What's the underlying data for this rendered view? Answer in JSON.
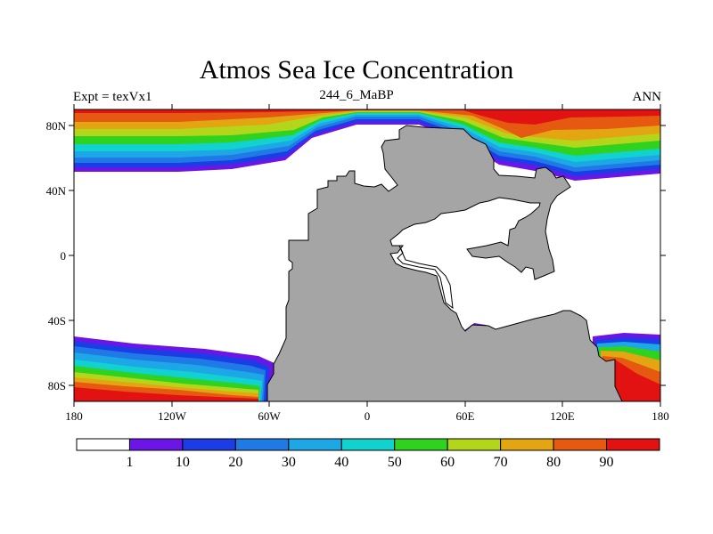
{
  "title": "Atmos Sea Ice Concentration",
  "subtitle_left": "Expt = texVx1",
  "subtitle_center": "244_6_MaBP",
  "subtitle_right": "ANN",
  "x_ticks": [
    "180",
    "120W",
    "60W",
    "0",
    "60E",
    "120E",
    "180"
  ],
  "y_ticks": [
    "80N",
    "40N",
    "0",
    "40S",
    "80S"
  ],
  "colorbar": {
    "labels": [
      "1",
      "10",
      "20",
      "30",
      "40",
      "50",
      "60",
      "70",
      "80",
      "90"
    ],
    "colors": [
      "#ffffff",
      "#6b16e6",
      "#1c3ce6",
      "#1f7ae6",
      "#1ea7e6",
      "#12d2d0",
      "#2fd21e",
      "#b4d61a",
      "#e3a512",
      "#e55a10",
      "#e31212"
    ]
  },
  "colors": {
    "land": "#a5a5a5",
    "ocean": "#ffffff"
  }
}
